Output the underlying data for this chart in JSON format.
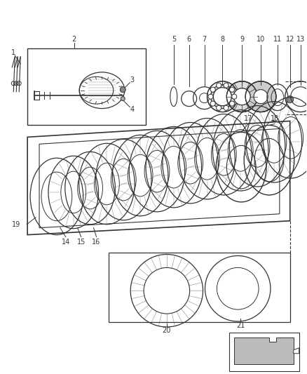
{
  "bg_color": "#ffffff",
  "line_color": "#333333",
  "gray_color": "#888888",
  "dark_gray": "#555555"
}
